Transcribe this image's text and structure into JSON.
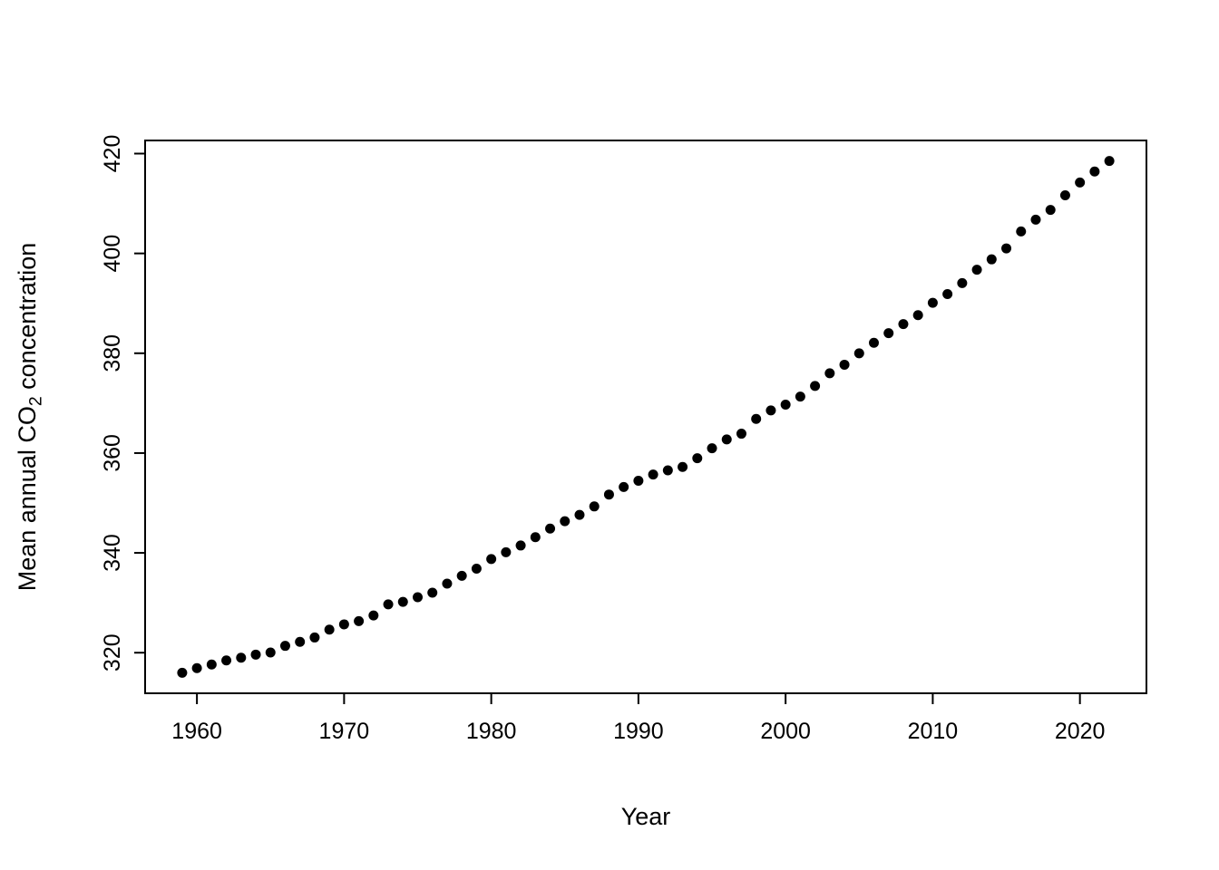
{
  "chart_data": {
    "type": "scatter",
    "title": "",
    "xlabel": "Year",
    "ylabel_prefix": "Mean annual CO",
    "ylabel_sub": "2",
    "ylabel_suffix": " concentration",
    "xlim": [
      1956.48,
      2024.52
    ],
    "ylim": [
      311.87,
      422.63
    ],
    "xticks": [
      1960,
      1970,
      1980,
      1990,
      2000,
      2010,
      2020
    ],
    "yticks": [
      320,
      340,
      360,
      380,
      400,
      420
    ],
    "grid": "off",
    "legend": "none",
    "point_color": "#000000",
    "background": "#ffffff",
    "x": [
      1959,
      1960,
      1961,
      1962,
      1963,
      1964,
      1965,
      1966,
      1967,
      1968,
      1969,
      1970,
      1971,
      1972,
      1973,
      1974,
      1975,
      1976,
      1977,
      1978,
      1979,
      1980,
      1981,
      1982,
      1983,
      1984,
      1985,
      1986,
      1987,
      1988,
      1989,
      1990,
      1991,
      1992,
      1993,
      1994,
      1995,
      1996,
      1997,
      1998,
      1999,
      2000,
      2001,
      2002,
      2003,
      2004,
      2005,
      2006,
      2007,
      2008,
      2009,
      2010,
      2011,
      2012,
      2013,
      2014,
      2015,
      2016,
      2017,
      2018,
      2019,
      2020,
      2021,
      2022
    ],
    "y": [
      315.98,
      316.91,
      317.64,
      318.45,
      318.99,
      319.62,
      320.04,
      321.37,
      322.18,
      323.05,
      324.62,
      325.68,
      326.32,
      327.46,
      329.68,
      330.19,
      331.12,
      332.03,
      333.84,
      335.41,
      336.84,
      338.76,
      340.12,
      341.48,
      343.15,
      344.87,
      346.35,
      347.61,
      349.31,
      351.69,
      353.2,
      354.45,
      355.7,
      356.54,
      357.21,
      358.96,
      360.97,
      362.74,
      363.88,
      366.84,
      368.54,
      369.71,
      371.32,
      373.45,
      375.98,
      377.7,
      379.98,
      382.09,
      384.02,
      385.83,
      387.64,
      390.1,
      391.85,
      394.06,
      396.74,
      398.81,
      401.01,
      404.41,
      406.76,
      408.72,
      411.65,
      414.21,
      416.41,
      418.53
    ]
  }
}
